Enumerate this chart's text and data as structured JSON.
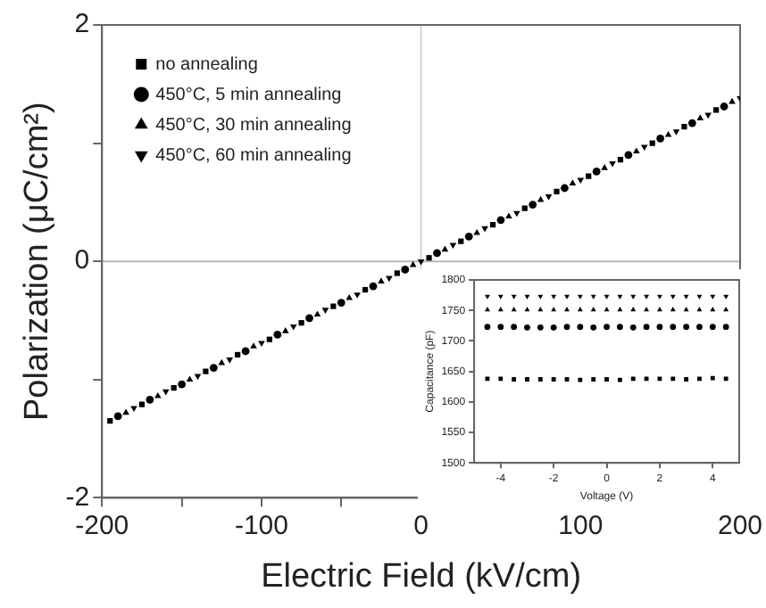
{
  "chart_data": [
    {
      "type": "scatter",
      "xlabel": "Electric Field (kV/cm)",
      "ylabel": "Polarization (μC/cm²)",
      "xlim": [
        -200,
        200
      ],
      "ylim": [
        -2,
        2
      ],
      "xticks": [
        -200,
        {
          "value": -150,
          "label": null
        },
        -100,
        {
          "value": -50,
          "label": null
        },
        0,
        {
          "value": 50,
          "label": null
        },
        100,
        {
          "value": 150,
          "label": null
        },
        200
      ],
      "yticks": [
        -2,
        {
          "value": -1,
          "label": null
        },
        0,
        {
          "value": 1,
          "label": null
        },
        2
      ],
      "series": [
        {
          "name": "no annealing",
          "color": "#000000",
          "marker": "square",
          "x": [
            -195,
            -175,
            -155,
            -135,
            -115,
            -95,
            -75,
            -55,
            -35,
            -15,
            5,
            25,
            45,
            65,
            85,
            105,
            125,
            145,
            165,
            185
          ],
          "values": [
            -1.35,
            -1.21,
            -1.07,
            -0.93,
            -0.79,
            -0.66,
            -0.52,
            -0.38,
            -0.24,
            -0.1,
            0.03,
            0.17,
            0.31,
            0.45,
            0.59,
            0.72,
            0.86,
            1.0,
            1.14,
            1.28
          ]
        },
        {
          "name": "450°C, 5 min annealing",
          "color": "#000000",
          "marker": "circle",
          "x": [
            -190,
            -170,
            -150,
            -130,
            -110,
            -90,
            -70,
            -50,
            -30,
            -10,
            10,
            30,
            50,
            70,
            90,
            110,
            130,
            150,
            170,
            190
          ],
          "values": [
            -1.31,
            -1.17,
            -1.04,
            -0.9,
            -0.76,
            -0.62,
            -0.48,
            -0.35,
            -0.21,
            -0.07,
            0.07,
            0.21,
            0.35,
            0.48,
            0.62,
            0.76,
            0.9,
            1.04,
            1.17,
            1.31
          ]
        },
        {
          "name": "450°C, 30 min annealing",
          "color": "#000000",
          "marker": "triangle",
          "x": [
            -185,
            -165,
            -145,
            -125,
            -105,
            -85,
            -65,
            -45,
            -25,
            -5,
            15,
            35,
            55,
            75,
            95,
            115,
            135,
            155,
            175,
            195
          ],
          "values": [
            -1.28,
            -1.14,
            -1.0,
            -0.86,
            -0.72,
            -0.59,
            -0.45,
            -0.31,
            -0.17,
            -0.03,
            0.1,
            0.24,
            0.38,
            0.52,
            0.66,
            0.79,
            0.93,
            1.07,
            1.21,
            1.35
          ]
        },
        {
          "name": "450°C, 60 min annealing",
          "color": "#000000",
          "marker": "triangle_down",
          "x": [
            -180,
            -160,
            -140,
            -120,
            -100,
            -80,
            -60,
            -40,
            -20,
            0,
            20,
            40,
            60,
            80,
            100,
            120,
            140,
            160,
            180,
            200
          ],
          "values": [
            -1.24,
            -1.1,
            -0.97,
            -0.83,
            -0.69,
            -0.55,
            -0.41,
            -0.28,
            -0.14,
            0,
            0.14,
            0.28,
            0.41,
            0.55,
            0.69,
            0.83,
            0.97,
            1.1,
            1.24,
            1.38
          ]
        }
      ],
      "ref_lines": [
        {
          "axis": "x",
          "value": 0,
          "color": "#d4d4d4"
        },
        {
          "axis": "y",
          "value": 0,
          "color": "#b8b8b8"
        }
      ],
      "legend": "top left",
      "grid": false
    },
    {
      "type": "scatter",
      "xlabel": "Voltage (V)",
      "ylabel": "Capacitance (pF)",
      "xlim": [
        -5,
        5
      ],
      "ylim": [
        1500,
        1800
      ],
      "xticks": [
        -4,
        -2,
        0,
        2,
        4
      ],
      "yticks": [
        1500,
        1550,
        1600,
        1650,
        1700,
        1750,
        1800
      ],
      "x": [
        -4.5,
        -4,
        -3.5,
        -3,
        -2.5,
        -2,
        -1.5,
        -1,
        -0.5,
        0,
        0.5,
        1,
        1.5,
        2,
        2.5,
        3,
        3.5,
        4,
        4.5
      ],
      "series": [
        {
          "color": "#000000",
          "marker": "square",
          "values": [
            1638,
            1638,
            1637,
            1637,
            1637,
            1637,
            1637,
            1636,
            1637,
            1637,
            1636,
            1638,
            1638,
            1638,
            1638,
            1637,
            1638,
            1639,
            1638
          ]
        },
        {
          "color": "#000000",
          "marker": "circle",
          "values": [
            1723,
            1723,
            1723,
            1722,
            1722,
            1722,
            1723,
            1723,
            1722,
            1723,
            1723,
            1722,
            1723,
            1723,
            1723,
            1723,
            1723,
            1723,
            1723
          ]
        },
        {
          "color": "#000000",
          "marker": "triangle",
          "values": [
            1751,
            1751,
            1751,
            1751,
            1751,
            1751,
            1751,
            1751,
            1751,
            1751,
            1751,
            1751,
            1751,
            1751,
            1751,
            1751,
            1751,
            1751,
            1751
          ]
        },
        {
          "color": "#000000",
          "marker": "triangle_down",
          "values": [
            1773,
            1773,
            1773,
            1773,
            1773,
            1773,
            1773,
            1773,
            1773,
            1773,
            1773,
            1773,
            1773,
            1773,
            1773,
            1773,
            1773,
            1773,
            1773
          ]
        }
      ],
      "grid": false
    }
  ]
}
